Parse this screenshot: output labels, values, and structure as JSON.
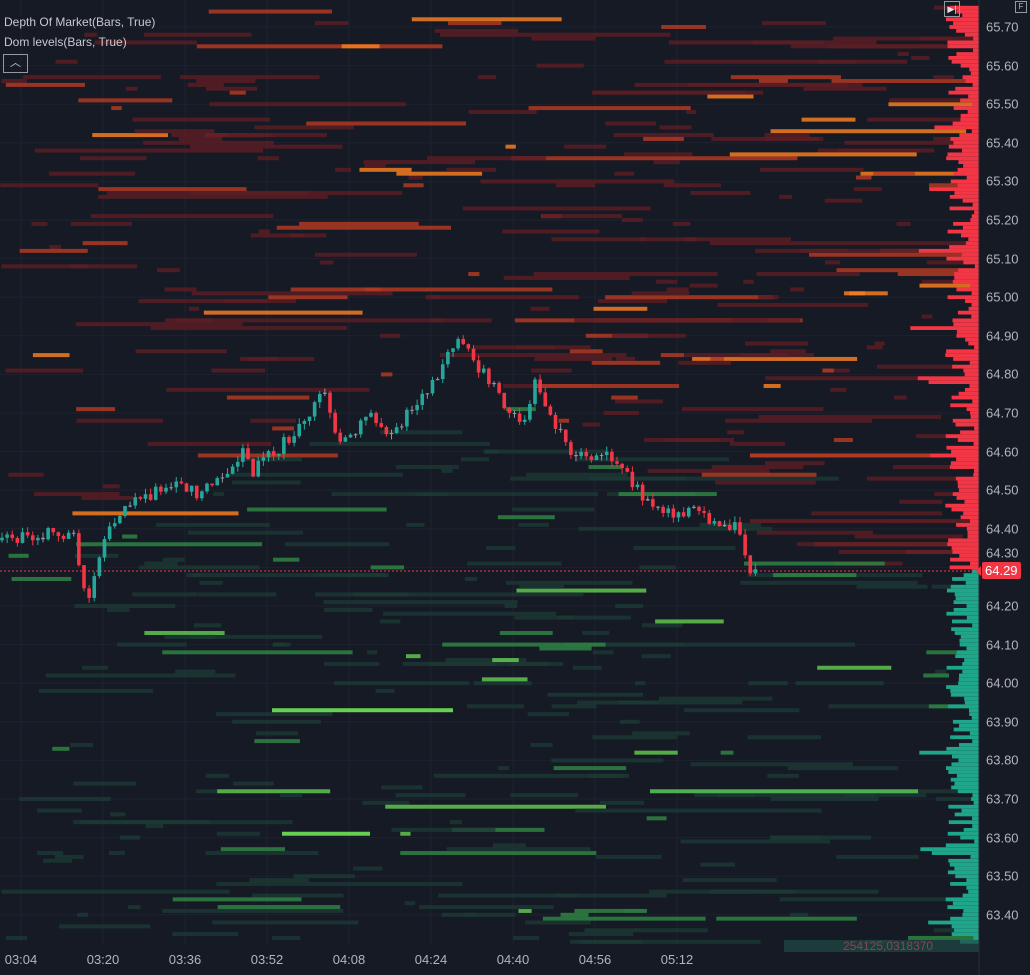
{
  "legend": {
    "items": [
      "Depth Of Market(Bars, True)",
      "Dom levels(Bars, True)"
    ],
    "collapse_icon": "chevron-up-icon"
  },
  "toolbar": {
    "scroll_to_realtime_icon": "skip-forward-icon",
    "f_label": "F"
  },
  "colors": {
    "up": "#26a69a",
    "down": "#f23645",
    "ask_heat": "#e8501e",
    "bid_heat": "#4caf50",
    "background": "#161a25"
  },
  "price_axis": {
    "labels": [
      "65.70",
      "65.60",
      "65.50",
      "65.40",
      "65.30",
      "65.20",
      "65.10",
      "65.00",
      "64.90",
      "64.80",
      "64.70",
      "64.60",
      "64.50",
      "64.40",
      "64.30",
      "64.20",
      "64.10",
      "64.00",
      "63.90",
      "63.80",
      "63.70",
      "63.60",
      "63.50",
      "63.40"
    ],
    "current_price": "64.29"
  },
  "time_axis": {
    "labels": [
      "03:04",
      "03:20",
      "03:36",
      "03:52",
      "04:08",
      "04:24",
      "04:40",
      "04:56",
      "05:12"
    ]
  },
  "footer_value": "254125,0318370",
  "price_path": [
    [
      "03:00",
      64.37
    ],
    [
      "03:04",
      64.38
    ],
    [
      "03:09",
      64.39
    ],
    [
      "03:15",
      64.39
    ],
    [
      "03:17",
      64.23
    ],
    [
      "03:18",
      64.21
    ],
    [
      "03:20",
      64.34
    ],
    [
      "03:24",
      64.45
    ],
    [
      "03:36",
      64.53
    ],
    [
      "03:39",
      64.48
    ],
    [
      "03:48",
      64.6
    ],
    [
      "03:50",
      64.55
    ],
    [
      "03:59",
      64.66
    ],
    [
      "04:04",
      64.75
    ],
    [
      "04:07",
      64.62
    ],
    [
      "04:13",
      64.7
    ],
    [
      "04:16",
      64.63
    ],
    [
      "04:22",
      64.73
    ],
    [
      "04:30",
      64.88
    ],
    [
      "04:36",
      64.79
    ],
    [
      "04:42",
      64.66
    ],
    [
      "04:45",
      64.77
    ],
    [
      "04:48",
      64.68
    ],
    [
      "04:53",
      64.59
    ],
    [
      "05:01",
      64.58
    ],
    [
      "05:07",
      64.47
    ],
    [
      "05:11",
      64.44
    ],
    [
      "05:17",
      64.44
    ],
    [
      "05:25",
      64.4
    ],
    [
      "05:27",
      64.29
    ]
  ]
}
